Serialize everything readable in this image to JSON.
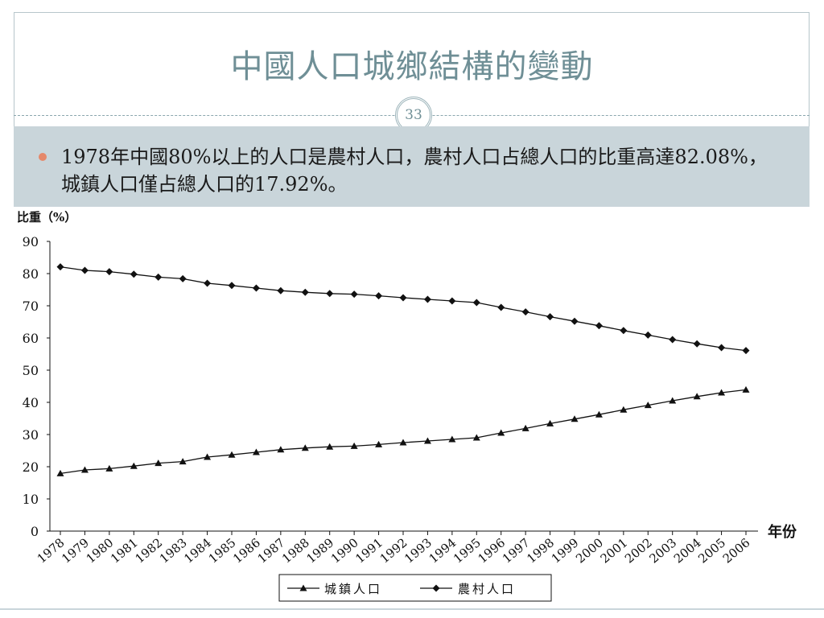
{
  "slide": {
    "title": "中國人口城鄉結構的變動",
    "page_number": "33",
    "bullet": "1978年中國80%以上的人口是農村人口，農村人口占總人口的比重高達82.08%，城鎮人口僅占總人口的17.92%。"
  },
  "colors": {
    "title": "#6f8f96",
    "band": "#c9d5da",
    "bullet_dot": "#e5886a",
    "series": "#111111"
  },
  "chart_data": {
    "type": "line",
    "ylabel": "比重（%）",
    "xlabel": "年份",
    "ylim": [
      0,
      90
    ],
    "yticks": [
      0,
      10,
      20,
      30,
      40,
      50,
      60,
      70,
      80,
      90
    ],
    "grid": false,
    "legend_position": "bottom-center",
    "x": [
      "1978",
      "1979",
      "1980",
      "1981",
      "1982",
      "1983",
      "1984",
      "1985",
      "1986",
      "1987",
      "1988",
      "1989",
      "1990",
      "1991",
      "1992",
      "1993",
      "1994",
      "1995",
      "1996",
      "1997",
      "1998",
      "1999",
      "2000",
      "2001",
      "2002",
      "2003",
      "2004",
      "2005",
      "2006"
    ],
    "series": [
      {
        "name": "城鎮人口",
        "marker": "triangle",
        "values": [
          17.9,
          19.0,
          19.4,
          20.2,
          21.1,
          21.6,
          23.0,
          23.7,
          24.5,
          25.3,
          25.8,
          26.2,
          26.4,
          26.9,
          27.5,
          28.0,
          28.5,
          29.0,
          30.5,
          31.9,
          33.4,
          34.8,
          36.2,
          37.7,
          39.1,
          40.5,
          41.8,
          43.0,
          43.9
        ]
      },
      {
        "name": "農村人口",
        "marker": "diamond",
        "values": [
          82.1,
          81.0,
          80.6,
          79.8,
          78.9,
          78.4,
          77.0,
          76.3,
          75.5,
          74.7,
          74.2,
          73.8,
          73.6,
          73.1,
          72.5,
          72.0,
          71.5,
          71.0,
          69.5,
          68.1,
          66.6,
          65.2,
          63.8,
          62.3,
          60.9,
          59.5,
          58.2,
          57.0,
          56.1
        ]
      }
    ]
  }
}
